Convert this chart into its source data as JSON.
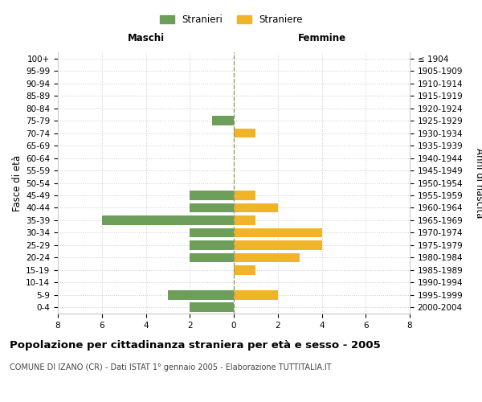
{
  "age_groups": [
    "0-4",
    "5-9",
    "10-14",
    "15-19",
    "20-24",
    "25-29",
    "30-34",
    "35-39",
    "40-44",
    "45-49",
    "50-54",
    "55-59",
    "60-64",
    "65-69",
    "70-74",
    "75-79",
    "80-84",
    "85-89",
    "90-94",
    "95-99",
    "100+"
  ],
  "birth_years": [
    "2000-2004",
    "1995-1999",
    "1990-1994",
    "1985-1989",
    "1980-1984",
    "1975-1979",
    "1970-1974",
    "1965-1969",
    "1960-1964",
    "1955-1959",
    "1950-1954",
    "1945-1949",
    "1940-1944",
    "1935-1939",
    "1930-1934",
    "1925-1929",
    "1920-1924",
    "1915-1919",
    "1910-1914",
    "1905-1909",
    "≤ 1904"
  ],
  "males": [
    2,
    3,
    0,
    0,
    2,
    2,
    2,
    6,
    2,
    2,
    0,
    0,
    0,
    0,
    0,
    1,
    0,
    0,
    0,
    0,
    0
  ],
  "females": [
    0,
    2,
    0,
    1,
    3,
    4,
    4,
    1,
    2,
    1,
    0,
    0,
    0,
    0,
    1,
    0,
    0,
    0,
    0,
    0,
    0
  ],
  "male_color": "#6d9f5b",
  "female_color": "#f0b429",
  "title": "Popolazione per cittadinanza straniera per età e sesso - 2005",
  "subtitle": "COMUNE DI IZANO (CR) - Dati ISTAT 1° gennaio 2005 - Elaborazione TUTTITALIA.IT",
  "xlabel_left": "Maschi",
  "xlabel_right": "Femmine",
  "ylabel_left": "Fasce di età",
  "ylabel_right": "Anni di nascita",
  "legend_male": "Stranieri",
  "legend_female": "Straniere",
  "xlim": 8,
  "bg_color": "#ffffff",
  "grid_color": "#cccccc",
  "center_line_color": "#999966",
  "bar_height": 0.75,
  "tick_fontsize": 7.5,
  "label_fontsize": 8.5,
  "title_fontsize": 9.5,
  "subtitle_fontsize": 7
}
